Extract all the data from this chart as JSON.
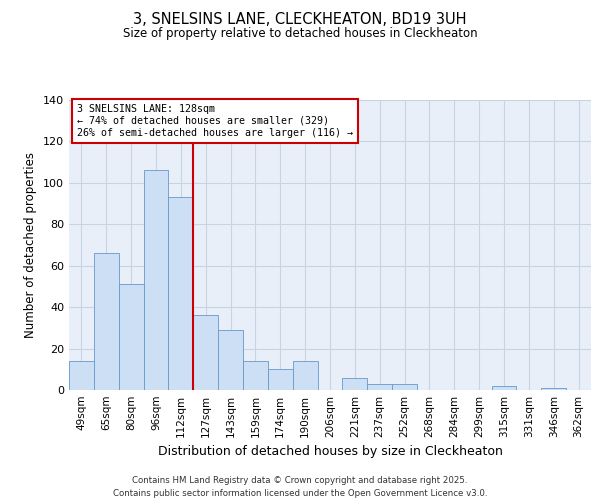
{
  "title1": "3, SNELSINS LANE, CLECKHEATON, BD19 3UH",
  "title2": "Size of property relative to detached houses in Cleckheaton",
  "xlabel": "Distribution of detached houses by size in Cleckheaton",
  "ylabel": "Number of detached properties",
  "bar_labels": [
    "49sqm",
    "65sqm",
    "80sqm",
    "96sqm",
    "112sqm",
    "127sqm",
    "143sqm",
    "159sqm",
    "174sqm",
    "190sqm",
    "206sqm",
    "221sqm",
    "237sqm",
    "252sqm",
    "268sqm",
    "284sqm",
    "299sqm",
    "315sqm",
    "331sqm",
    "346sqm",
    "362sqm"
  ],
  "bar_values": [
    14,
    66,
    51,
    106,
    93,
    36,
    29,
    14,
    10,
    14,
    0,
    6,
    3,
    3,
    0,
    0,
    0,
    2,
    0,
    1,
    0
  ],
  "bar_color": "#ccdff5",
  "bar_edge_color": "#6699cc",
  "property_line_idx": 5,
  "property_line_color": "#cc0000",
  "annotation_title": "3 SNELSINS LANE: 128sqm",
  "annotation_line1": "← 74% of detached houses are smaller (329)",
  "annotation_line2": "26% of semi-detached houses are larger (116) →",
  "annotation_box_edge_color": "#cc0000",
  "ylim": [
    0,
    140
  ],
  "yticks": [
    0,
    20,
    40,
    60,
    80,
    100,
    120,
    140
  ],
  "footer1": "Contains HM Land Registry data © Crown copyright and database right 2025.",
  "footer2": "Contains public sector information licensed under the Open Government Licence v3.0.",
  "background_color": "#ffffff",
  "plot_bg_color": "#e8eff8",
  "grid_color": "#c8d4e4"
}
